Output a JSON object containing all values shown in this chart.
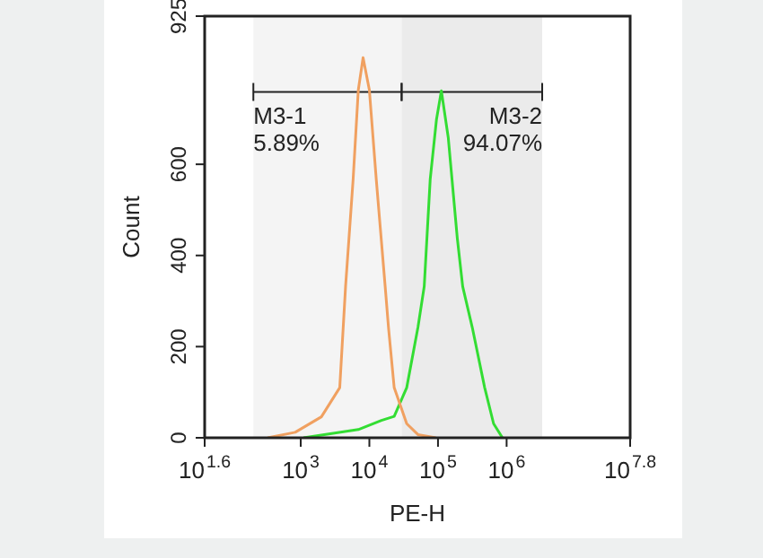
{
  "chart_data": {
    "type": "line",
    "xlabel": "PE-H",
    "ylabel": "Count",
    "log": "x",
    "xlim": [
      39.81,
      63095734
    ],
    "xticks": [
      {
        "value": 39.81,
        "label": "10$^{1.6}$"
      },
      {
        "value": 1000,
        "label": "10$^{3}$"
      },
      {
        "value": 10000,
        "label": "10$^{4}$"
      },
      {
        "value": 100000,
        "label": "10$^{5}$"
      },
      {
        "value": 1000000,
        "label": "10$^{6}$"
      },
      {
        "value": 63095734,
        "label": "10$^{7.8}$"
      }
    ],
    "ylim": [
      0,
      925
    ],
    "yticks": [
      0,
      200,
      400,
      600,
      925
    ],
    "grid": false,
    "legend": false,
    "marker": "none",
    "line_style": "solid",
    "series": [
      {
        "color": "#f0a060",
        "x": [
          330,
          830,
          2000,
          3700,
          4500,
          5800,
          6900,
          8100,
          10000,
          12600,
          17000,
          19000,
          23000,
          35000,
          51000,
          93000
        ],
        "values": [
          0,
          12,
          46,
          110,
          332,
          567,
          763,
          834,
          763,
          567,
          332,
          242,
          110,
          31,
          7,
          0
        ]
      },
      {
        "color": "#33dd33",
        "x": [
          1100,
          6900,
          15000,
          23000,
          35000,
          51000,
          63000,
          77000,
          95000,
          112000,
          141000,
          191000,
          229000,
          316000,
          479000,
          646000,
          870000
        ],
        "values": [
          0,
          18,
          38,
          47,
          110,
          242,
          332,
          567,
          698,
          761,
          659,
          438,
          332,
          242,
          110,
          31,
          0
        ]
      }
    ],
    "bands": [
      {
        "axis": "x",
        "from": 204,
        "to": 29500,
        "label": "M3-1\n5.89%",
        "color": "#f4f4f4"
      },
      {
        "axis": "x",
        "from": 29500,
        "to": 3300000,
        "label": "M3-2\n94.07%",
        "color": "#ebebeb"
      }
    ]
  }
}
